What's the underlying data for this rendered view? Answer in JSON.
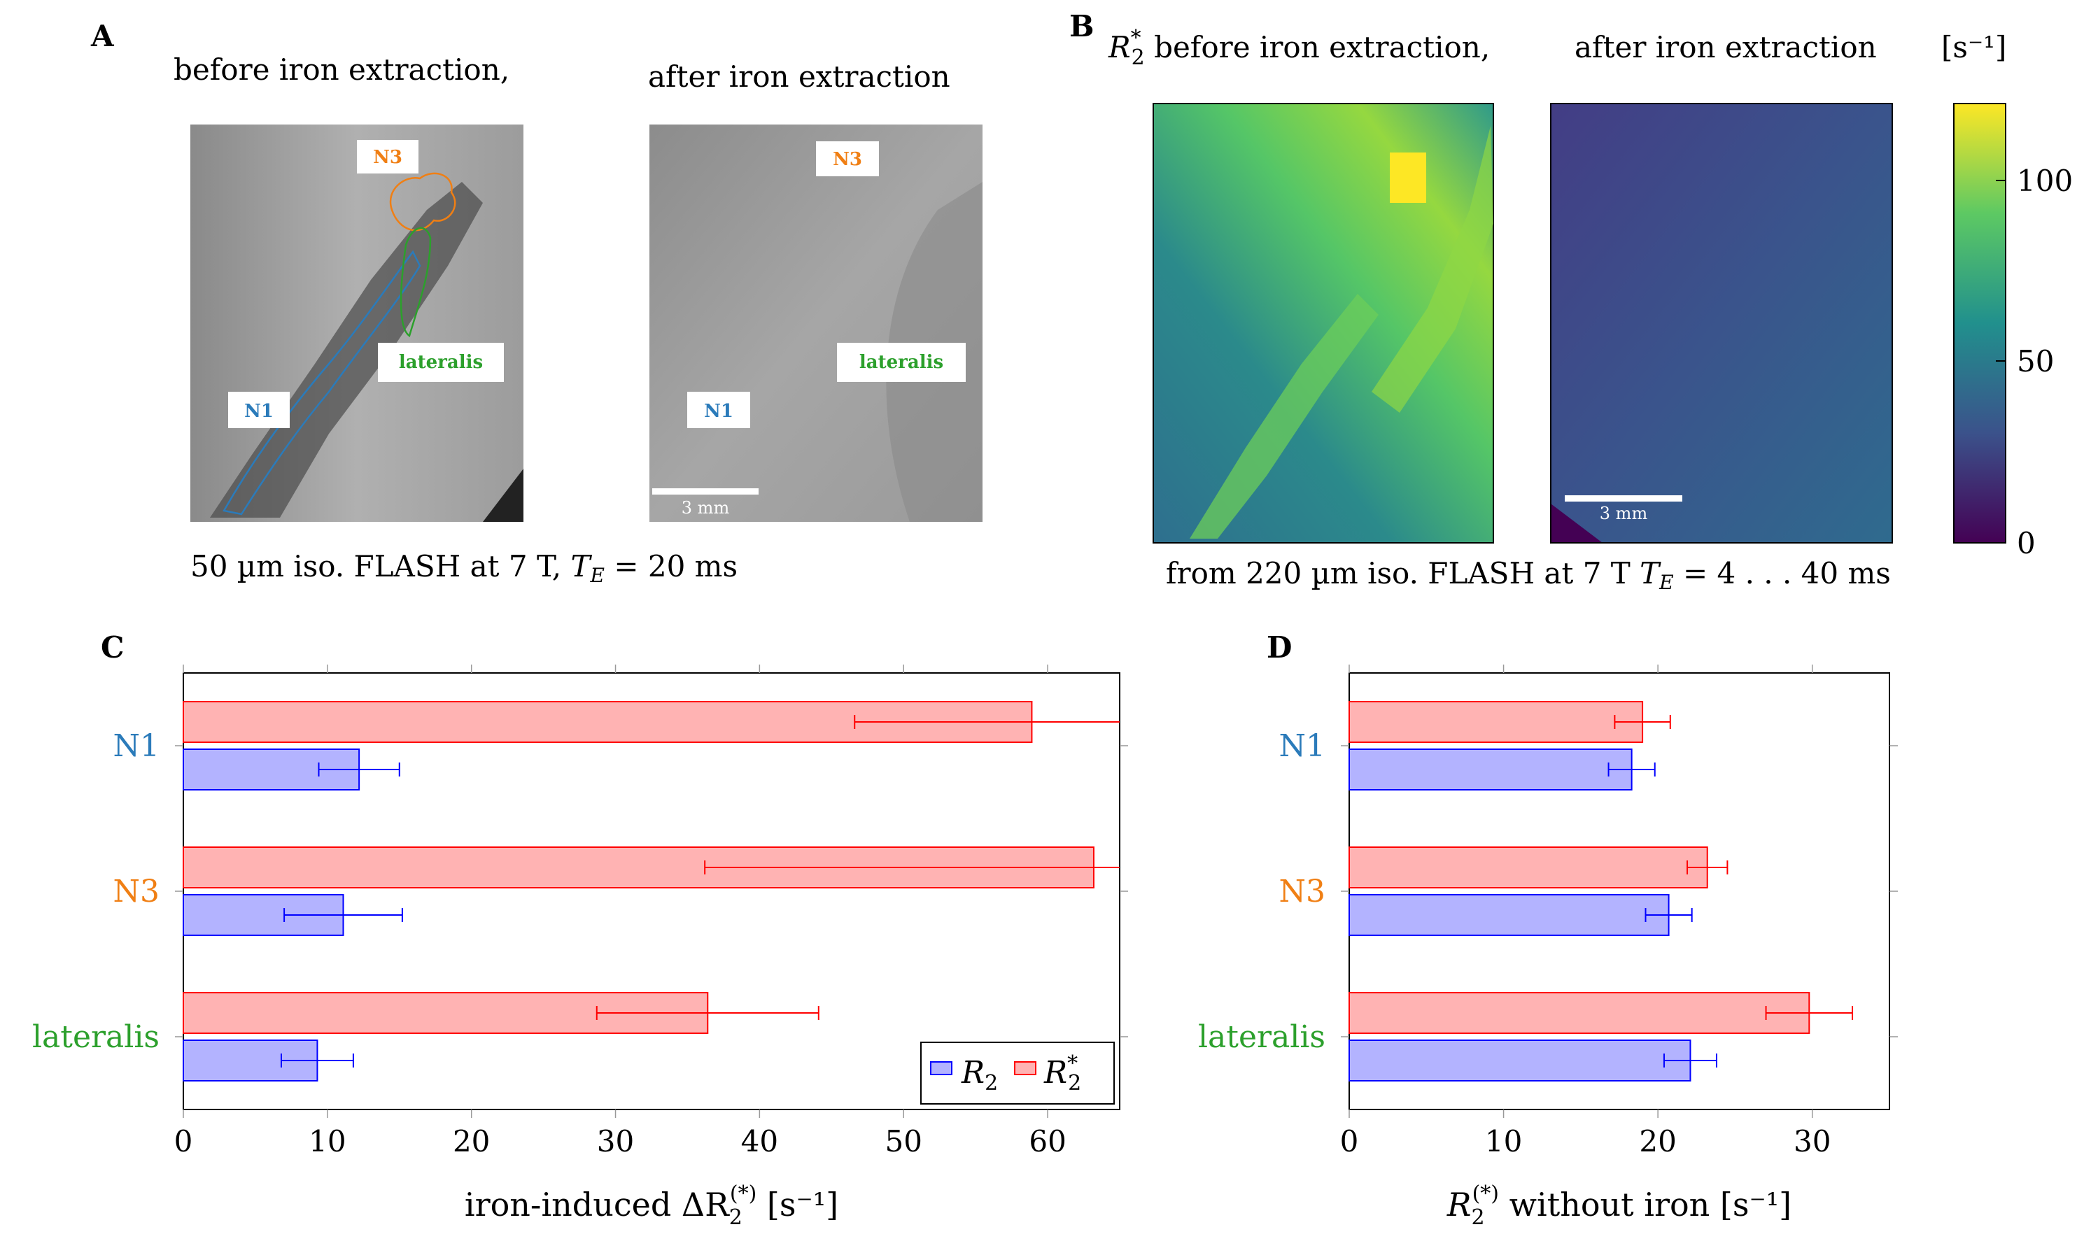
{
  "panels": {
    "A": {
      "letter": "A",
      "title_before": "before iron extraction,",
      "title_after": "after iron extraction",
      "caption": "50 µm iso. FLASH at 7 T, T_E = 20 ms",
      "caption_main": "50 µm iso. FLASH at 7 T, ",
      "caption_te": "T",
      "caption_te_sub": "E",
      "caption_te_val": " = 20 ms",
      "regions": {
        "n1": "N1",
        "n3": "N3",
        "lateralis": "lateralis"
      },
      "scalebar": "3 mm"
    },
    "B": {
      "letter": "B",
      "title_r": "R",
      "title_r_sub": "2",
      "title_r_sup": "*",
      "title_before": " before iron extraction,",
      "title_after": "after iron extraction",
      "unit": "[s⁻¹]",
      "caption": "from 220 µm iso. FLASH at 7 T T_E = 4 . . . 40 ms",
      "caption_main": "from 220 µm iso. FLASH at 7 T ",
      "caption_te": "T",
      "caption_te_sub": "E",
      "caption_te_val": " = 4 . . . 40 ms",
      "scalebar": "3 mm",
      "colorbar_ticks": [
        "100",
        "50",
        "0"
      ]
    },
    "C": {
      "letter": "C"
    },
    "D": {
      "letter": "D"
    }
  },
  "colors": {
    "n1": "#2b7bba",
    "n3": "#f07f14",
    "lateralis": "#2ca02c",
    "r2_fill": "#b3b3ff",
    "r2_stroke": "#0000ff",
    "r2s_fill": "#ffb3b3",
    "r2s_stroke": "#ff0000"
  },
  "chart_data": [
    {
      "id": "C",
      "type": "bar",
      "orientation": "horizontal",
      "categories": [
        "N1",
        "N3",
        "lateralis"
      ],
      "series": [
        {
          "name": "R2",
          "values": [
            12.2,
            11.1,
            9.3
          ],
          "errors": [
            2.8,
            4.1,
            2.5
          ]
        },
        {
          "name": "R2*",
          "values": [
            58.9,
            63.2,
            36.4
          ],
          "errors": [
            12.3,
            27.0,
            7.7
          ]
        }
      ],
      "xlabel": "iron-induced ΔR2(*) [s⁻¹]",
      "xlabel_main": "iron-induced ΔR",
      "xlabel_sub": "2",
      "xlabel_sup": "(*)",
      "xlabel_unit": "[s⁻¹]",
      "xlim": [
        0,
        65
      ],
      "xticks": [
        0,
        10,
        20,
        30,
        40,
        50,
        60
      ],
      "legend": {
        "position": "bottom-right",
        "labels": [
          "R2",
          "R2*"
        ]
      }
    },
    {
      "id": "D",
      "type": "bar",
      "orientation": "horizontal",
      "categories": [
        "N1",
        "N3",
        "lateralis"
      ],
      "series": [
        {
          "name": "R2",
          "values": [
            18.3,
            20.7,
            22.1
          ],
          "errors": [
            1.5,
            1.5,
            1.7
          ]
        },
        {
          "name": "R2*",
          "values": [
            19.0,
            23.2,
            29.8
          ],
          "errors": [
            1.8,
            1.3,
            2.8
          ]
        }
      ],
      "xlabel": "R2(*) without iron [s⁻¹]",
      "xlabel_main": "R",
      "xlabel_sub": "2",
      "xlabel_sup": "(*)",
      "xlabel_rest": " without iron ",
      "xlabel_unit": "[s⁻¹]",
      "xlim": [
        0,
        35
      ],
      "xticks": [
        0,
        10,
        20,
        30
      ]
    }
  ]
}
